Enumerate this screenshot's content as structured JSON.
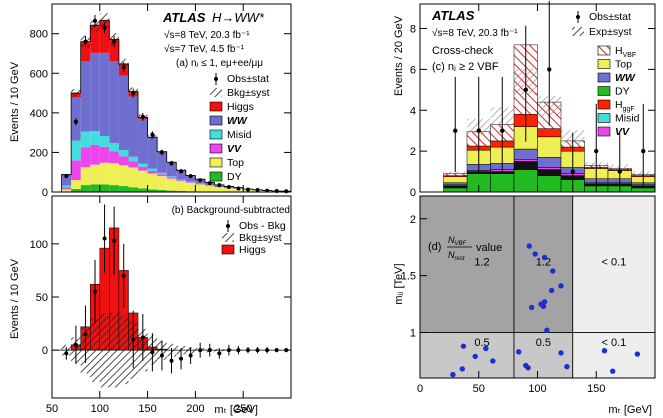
{
  "colors": {
    "higgs": "#ee1111",
    "ww": "#6f6fcf",
    "misid": "#44dddd",
    "vv": "#ee44ee",
    "top": "#eeee55",
    "dy": "#22bb22",
    "ggf": "#ff2200",
    "cell_dark": "#a3a3a3",
    "cell_mid": "#c8c8c8",
    "cell_light": "#eeeeee",
    "points": "#1a2fd6"
  },
  "chart_data": [
    {
      "id": "a",
      "type": "bar",
      "stacked": true,
      "title": "",
      "xlabel": "",
      "ylabel": "Events / 10 GeV",
      "xlim": [
        50,
        300
      ],
      "ylim": [
        0,
        950
      ],
      "yticks": [
        0,
        200,
        400,
        600,
        800
      ],
      "atlas_text": "ATLAS",
      "process_text": "H→WW*",
      "lumi_lines": [
        "√s=8 TeV, 20.3 fb⁻¹",
        "√s=7 TeV, 4.5 fb⁻¹"
      ],
      "panel_label": "(a) nⱼ ≤ 1, eμ+ee/μμ",
      "bin_edges": [
        60,
        70,
        80,
        90,
        100,
        110,
        120,
        130,
        140,
        150,
        160,
        170,
        180,
        190,
        200,
        210,
        220,
        230,
        240,
        250,
        260,
        270,
        280,
        290,
        300
      ],
      "legend_position": "right",
      "legend": [
        {
          "label": "Obs±stat",
          "marker": "point"
        },
        {
          "label": "Bkg±syst",
          "marker": "hatch"
        },
        {
          "label": "Higgs",
          "color_key": "higgs"
        },
        {
          "label": "WW",
          "color_key": "ww",
          "italic": true
        },
        {
          "label": "Misid",
          "color_key": "misid"
        },
        {
          "label": "VV",
          "color_key": "vv",
          "italic": true
        },
        {
          "label": "Top",
          "color_key": "top"
        },
        {
          "label": "DY",
          "color_key": "dy"
        }
      ],
      "series": [
        {
          "name": "DY",
          "color_key": "dy",
          "values": [
            3,
            15,
            35,
            38,
            38,
            35,
            30,
            24,
            18,
            13,
            10,
            7,
            5,
            4,
            3,
            2,
            2,
            1,
            1,
            1,
            1,
            0,
            0,
            0
          ]
        },
        {
          "name": "Top",
          "color_key": "top",
          "values": [
            10,
            45,
            90,
            100,
            110,
            110,
            105,
            100,
            90,
            80,
            70,
            60,
            50,
            42,
            35,
            28,
            22,
            18,
            14,
            11,
            8,
            6,
            4,
            3
          ]
        },
        {
          "name": "VV",
          "color_key": "vv",
          "values": [
            10,
            100,
            100,
            100,
            80,
            60,
            45,
            30,
            20,
            13,
            9,
            6,
            4,
            3,
            2,
            2,
            1,
            1,
            1,
            0,
            0,
            0,
            0,
            0
          ]
        },
        {
          "name": "Misid",
          "color_key": "misid",
          "values": [
            10,
            100,
            80,
            70,
            55,
            42,
            32,
            24,
            16,
            12,
            8,
            6,
            4,
            3,
            2,
            2,
            1,
            1,
            1,
            0,
            0,
            0,
            0,
            0
          ]
        },
        {
          "name": "WW",
          "color_key": "ww",
          "values": [
            50,
            220,
            355,
            395,
            420,
            415,
            375,
            305,
            225,
            155,
            105,
            71,
            47,
            31,
            22,
            15,
            10,
            7,
            5,
            3,
            2,
            2,
            1,
            1
          ]
        },
        {
          "name": "Higgs",
          "color_key": "higgs",
          "values": [
            5,
            20,
            100,
            140,
            165,
            110,
            60,
            25,
            8,
            4,
            2,
            1,
            0,
            0,
            0,
            0,
            0,
            0,
            0,
            0,
            0,
            0,
            0,
            0
          ]
        }
      ],
      "observed": [
        80,
        355,
        760,
        865,
        830,
        760,
        630,
        500,
        380,
        290,
        200,
        145,
        105,
        80,
        60,
        45,
        35,
        25,
        18,
        12,
        10,
        7,
        5,
        4
      ]
    },
    {
      "id": "b",
      "type": "bar",
      "title": "",
      "xlabel": "mₜ [GeV]",
      "ylabel": "Events / 10 GeV",
      "xlim": [
        50,
        300
      ],
      "ylim": [
        -45,
        145
      ],
      "yticks": [
        0,
        50,
        100
      ],
      "xticks": [
        50,
        100,
        150,
        200,
        250
      ],
      "panel_label": "(b) Background-subtracted",
      "legend_position": "top-right",
      "legend": [
        {
          "label": "Obs - Bkg",
          "marker": "point"
        },
        {
          "label": "Bkg±syst",
          "marker": "hatch"
        },
        {
          "label": "Higgs",
          "color_key": "higgs"
        }
      ],
      "bin_edges": [
        60,
        70,
        80,
        90,
        100,
        110,
        120,
        130,
        140,
        150,
        160,
        170,
        180,
        190,
        200,
        210,
        220,
        230,
        240,
        250,
        260,
        270,
        280,
        290,
        300
      ],
      "higgs": [
        0,
        5,
        22,
        62,
        96,
        115,
        75,
        35,
        12,
        3,
        1,
        0,
        0,
        0,
        0,
        0,
        0,
        0,
        0,
        0,
        0,
        0,
        0,
        0
      ],
      "bkg_syst": [
        5,
        12,
        22,
        30,
        35,
        35,
        32,
        27,
        20,
        14,
        9,
        6,
        4,
        3,
        2,
        2,
        1,
        1,
        1,
        0,
        0,
        0,
        0,
        0
      ],
      "observed": [
        -3,
        5,
        15,
        55,
        105,
        103,
        70,
        10,
        12,
        -2,
        -5,
        -10,
        -8,
        -5,
        0,
        0,
        -3,
        0,
        0,
        0,
        0,
        0,
        0,
        0
      ],
      "obs_err": [
        6,
        18,
        27,
        30,
        32,
        32,
        30,
        27,
        22,
        18,
        14,
        12,
        10,
        8,
        7,
        6,
        5,
        5,
        4,
        3,
        3,
        3,
        2,
        2
      ]
    },
    {
      "id": "c",
      "type": "bar",
      "stacked": true,
      "title": "",
      "xlabel": "",
      "ylabel": "Events / 20 GeV",
      "xlim": [
        0,
        200
      ],
      "ylim": [
        0,
        9.2
      ],
      "yticks": [
        0,
        2,
        4,
        6,
        8
      ],
      "atlas_text": "ATLAS",
      "lumi_lines": [
        "√s=8 TeV, 20.3 fb⁻¹"
      ],
      "extra_text": "Cross-check",
      "panel_label": "(c) nⱼ ≥ 2 VBF",
      "bin_edges": [
        20,
        40,
        60,
        80,
        100,
        120,
        140,
        160,
        180,
        200
      ],
      "legend_position": "right",
      "legend": [
        {
          "label": "Obs±stat",
          "marker": "point"
        },
        {
          "label": "Exp±syst",
          "marker": "hatch"
        },
        {
          "label": "H",
          "sub": "VBF",
          "color_key": "higgs",
          "pattern": "vbf"
        },
        {
          "label": "Top",
          "color_key": "top"
        },
        {
          "label": "WW",
          "color_key": "ww",
          "italic": true
        },
        {
          "label": "DY",
          "color_key": "dy"
        },
        {
          "label": "H",
          "sub": "ggF",
          "color_key": "ggf"
        },
        {
          "label": "Misid",
          "color_key": "misid"
        },
        {
          "label": "VV",
          "color_key": "vv",
          "italic": true
        }
      ],
      "series": [
        {
          "name": "DY",
          "color_key": "dy",
          "values": [
            0.2,
            0.9,
            0.9,
            1.1,
            0.8,
            0.6,
            0.3,
            0.3,
            0.2
          ]
        },
        {
          "name": "Misid-dark",
          "color_key": "dark",
          "values": [
            0.1,
            0.1,
            0.1,
            0.4,
            0.3,
            0.2,
            0.1,
            0.1,
            0.1
          ]
        },
        {
          "name": "VV",
          "color_key": "vv",
          "values": [
            0.05,
            0.05,
            0.1,
            0.1,
            0.1,
            0.1,
            0.05,
            0.05,
            0.05
          ]
        },
        {
          "name": "WW",
          "color_key": "ww",
          "values": [
            0.1,
            0.3,
            0.3,
            0.5,
            0.5,
            0.3,
            0.2,
            0.2,
            0.1
          ]
        },
        {
          "name": "Top",
          "color_key": "top",
          "values": [
            0.3,
            0.7,
            0.8,
            1.1,
            1.0,
            0.8,
            0.5,
            0.4,
            0.3
          ]
        },
        {
          "name": "HggF",
          "color_key": "ggf",
          "values": [
            0.05,
            0.2,
            0.3,
            0.6,
            0.4,
            0.2,
            0.05,
            0.05,
            0.05
          ]
        },
        {
          "name": "HVBF",
          "color_key": "higgs",
          "values": [
            0.1,
            0.7,
            0.8,
            3.4,
            1.3,
            0.3,
            0.1,
            0.05,
            0.05
          ]
        }
      ],
      "exp_band": [
        0.9,
        3.2,
        3.7,
        5.4,
        4.2,
        2.7,
        1.3,
        1.2,
        0.9
      ],
      "observed": [
        {
          "x": 30,
          "y": 3.0
        },
        {
          "x": 50,
          "y": 3.0
        },
        {
          "x": 70,
          "y": 3.0
        },
        {
          "x": 90,
          "y": 5.0
        },
        {
          "x": 110,
          "y": 6.0
        },
        {
          "x": 130,
          "y": 1.0
        },
        {
          "x": 150,
          "y": 2.0
        },
        {
          "x": 170,
          "y": 1.0
        },
        {
          "x": 190,
          "y": 2.0
        }
      ]
    },
    {
      "id": "d",
      "type": "scatter",
      "title": "",
      "xlabel": "mₜ [GeV]",
      "ylabel": "mⱼⱼ [TeV]",
      "xlim": [
        0,
        200
      ],
      "ylim": [
        0.6,
        2.2
      ],
      "yticks": [
        1,
        1.5,
        2
      ],
      "xticks": [
        0,
        50,
        100,
        150
      ],
      "panel_label": "(d)",
      "ratio_num": "N",
      "ratio_num_sub": "VBF",
      "ratio_den": "N",
      "ratio_den_sub": "rest",
      "ratio_suffix": "value",
      "x_edges": [
        80,
        130
      ],
      "y_edges": [
        1.0
      ],
      "regions": [
        {
          "x_range": [
            0,
            80
          ],
          "y_range": [
            1.0,
            2.2
          ],
          "label": "1.2",
          "shade": "cell_dark"
        },
        {
          "x_range": [
            80,
            130
          ],
          "y_range": [
            1.0,
            2.2
          ],
          "label": "1.2",
          "shade": "cell_dark"
        },
        {
          "x_range": [
            130,
            200
          ],
          "y_range": [
            1.0,
            2.2
          ],
          "label": "< 0.1",
          "shade": "cell_light"
        },
        {
          "x_range": [
            0,
            80
          ],
          "y_range": [
            0.6,
            1.0
          ],
          "label": "0.5",
          "shade": "cell_mid"
        },
        {
          "x_range": [
            80,
            130
          ],
          "y_range": [
            0.6,
            1.0
          ],
          "label": "0.5",
          "shade": "cell_mid"
        },
        {
          "x_range": [
            130,
            200
          ],
          "y_range": [
            0.6,
            1.0
          ],
          "label": "< 0.1",
          "shade": "cell_light"
        }
      ],
      "points": [
        {
          "x": 93,
          "y": 1.76
        },
        {
          "x": 98,
          "y": 1.69
        },
        {
          "x": 106,
          "y": 1.66
        },
        {
          "x": 113,
          "y": 1.54
        },
        {
          "x": 120,
          "y": 1.41
        },
        {
          "x": 112,
          "y": 1.37
        },
        {
          "x": 106,
          "y": 1.27
        },
        {
          "x": 103,
          "y": 1.25
        },
        {
          "x": 95,
          "y": 1.22
        },
        {
          "x": 105,
          "y": 1.23
        },
        {
          "x": 108,
          "y": 1.02
        },
        {
          "x": 37,
          "y": 0.88
        },
        {
          "x": 56,
          "y": 0.86
        },
        {
          "x": 47,
          "y": 0.79
        },
        {
          "x": 62,
          "y": 0.75
        },
        {
          "x": 28,
          "y": 0.63
        },
        {
          "x": 36,
          "y": 0.68
        },
        {
          "x": 84,
          "y": 0.83
        },
        {
          "x": 90,
          "y": 0.71
        },
        {
          "x": 92,
          "y": 0.69
        },
        {
          "x": 120,
          "y": 0.82
        },
        {
          "x": 125,
          "y": 0.7
        },
        {
          "x": 157,
          "y": 0.84
        },
        {
          "x": 185,
          "y": 0.81
        },
        {
          "x": 164,
          "y": 0.66
        }
      ]
    }
  ]
}
